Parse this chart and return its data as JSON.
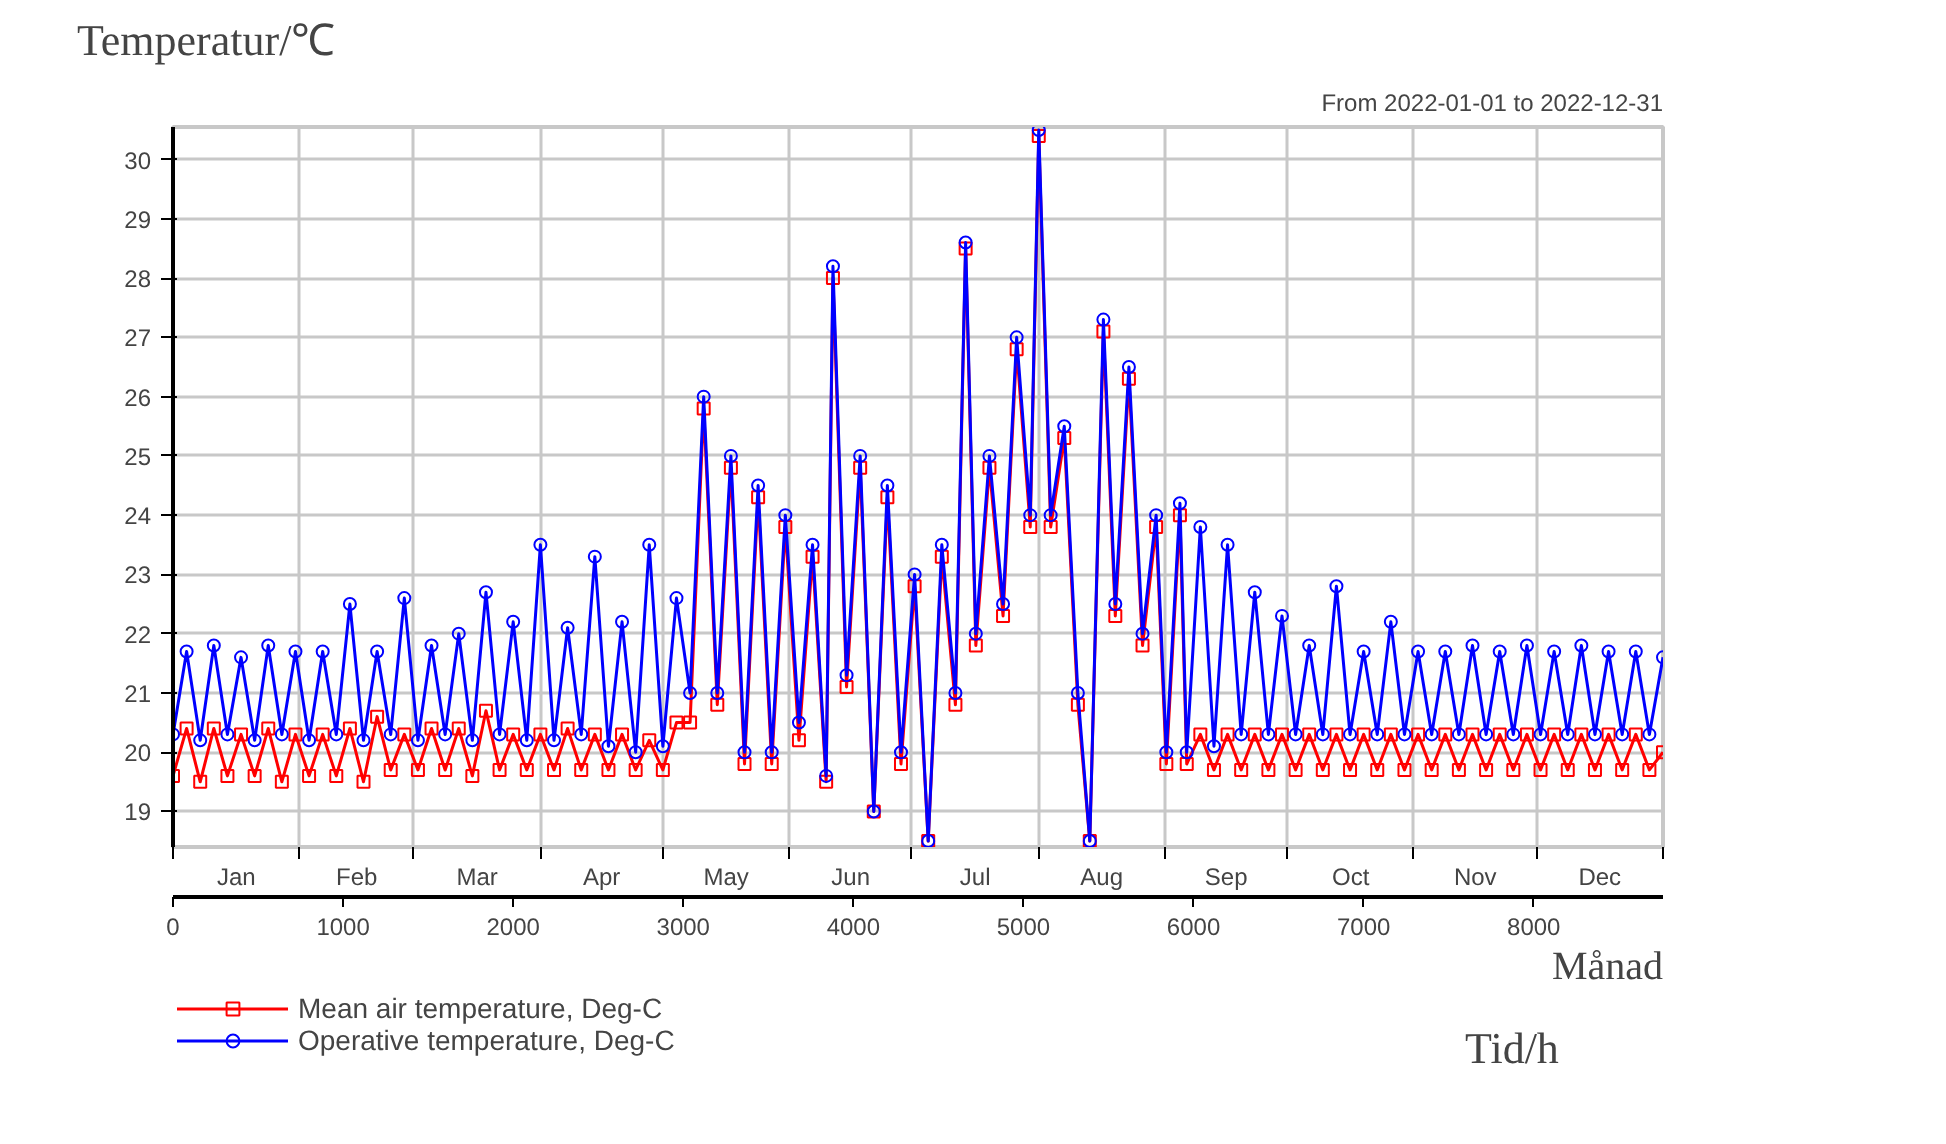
{
  "chart_data": {
    "type": "line",
    "subtitle": "From 2022-01-01 to 2022-12-31",
    "ylabel": "Temperatur/℃",
    "xlabel": "Tid/h",
    "x2label": "Månad",
    "x": [
      0,
      80,
      160,
      240,
      320,
      400,
      480,
      560,
      640,
      720,
      800,
      880,
      960,
      1040,
      1120,
      1200,
      1280,
      1360,
      1440,
      1520,
      1600,
      1680,
      1760,
      1840,
      1920,
      2000,
      2080,
      2160,
      2240,
      2320,
      2400,
      2480,
      2560,
      2640,
      2720,
      2800,
      2880,
      2960,
      3040,
      3120,
      3200,
      3280,
      3360,
      3440,
      3520,
      3600,
      3680,
      3760,
      3840,
      3880,
      3960,
      4040,
      4120,
      4200,
      4280,
      4360,
      4440,
      4520,
      4600,
      4660,
      4720,
      4800,
      4880,
      4960,
      5040,
      5090,
      5160,
      5240,
      5320,
      5390,
      5470,
      5540,
      5620,
      5700,
      5780,
      5840,
      5920,
      5960,
      6040,
      6120,
      6200,
      6280,
      6360,
      6440,
      6520,
      6600,
      6680,
      6760,
      6840,
      6920,
      7000,
      7080,
      7160,
      7240,
      7320,
      7400,
      7480,
      7560,
      7640,
      7720,
      7800,
      7880,
      7960,
      8040,
      8120,
      8200,
      8280,
      8360,
      8440,
      8520,
      8600,
      8680,
      8760
    ],
    "series": [
      {
        "name": "Mean air temperature, Deg-C",
        "color": "#ff0000",
        "marker": "square",
        "values": [
          19.6,
          20.4,
          19.5,
          20.4,
          19.6,
          20.3,
          19.6,
          20.4,
          19.5,
          20.3,
          19.6,
          20.3,
          19.6,
          20.4,
          19.5,
          20.6,
          19.7,
          20.3,
          19.7,
          20.4,
          19.7,
          20.4,
          19.6,
          20.7,
          19.7,
          20.3,
          19.7,
          20.3,
          19.7,
          20.4,
          19.7,
          20.3,
          19.7,
          20.3,
          19.7,
          20.2,
          19.7,
          20.5,
          20.5,
          25.8,
          20.8,
          24.8,
          19.8,
          24.3,
          19.8,
          23.8,
          20.2,
          23.3,
          19.5,
          28.0,
          21.1,
          24.8,
          19.0,
          24.3,
          19.8,
          22.8,
          18.5,
          23.3,
          20.8,
          28.5,
          21.8,
          24.8,
          22.3,
          26.8,
          23.8,
          30.4,
          23.8,
          25.3,
          20.8,
          18.5,
          27.1,
          22.3,
          26.3,
          21.8,
          23.8,
          19.8,
          24.0,
          19.8,
          20.3,
          19.7,
          20.3,
          19.7,
          20.3,
          19.7,
          20.3,
          19.7,
          20.3,
          19.7,
          20.3,
          19.7,
          20.3,
          19.7,
          20.3,
          19.7,
          20.3,
          19.7,
          20.3,
          19.7,
          20.3,
          19.7,
          20.3,
          19.7,
          20.3,
          19.7,
          20.3,
          19.7,
          20.3,
          19.7,
          20.3,
          19.7,
          20.3,
          19.7,
          20.0
        ]
      },
      {
        "name": "Operative temperature, Deg-C",
        "color": "#0000ff",
        "marker": "circle",
        "values": [
          20.3,
          21.7,
          20.2,
          21.8,
          20.3,
          21.6,
          20.2,
          21.8,
          20.3,
          21.7,
          20.2,
          21.7,
          20.3,
          22.5,
          20.2,
          21.7,
          20.3,
          22.6,
          20.2,
          21.8,
          20.3,
          22.0,
          20.2,
          22.7,
          20.3,
          22.2,
          20.2,
          23.5,
          20.2,
          22.1,
          20.3,
          23.3,
          20.1,
          22.2,
          20.0,
          23.5,
          20.1,
          22.6,
          21.0,
          26.0,
          21.0,
          25.0,
          20.0,
          24.5,
          20.0,
          24.0,
          20.5,
          23.5,
          19.6,
          28.2,
          21.3,
          25.0,
          19.0,
          24.5,
          20.0,
          23.0,
          18.5,
          23.5,
          21.0,
          28.6,
          22.0,
          25.0,
          22.5,
          27.0,
          24.0,
          30.5,
          24.0,
          25.5,
          21.0,
          18.5,
          27.3,
          22.5,
          26.5,
          22.0,
          24.0,
          20.0,
          24.2,
          20.0,
          23.8,
          20.1,
          23.5,
          20.3,
          22.7,
          20.3,
          22.3,
          20.3,
          21.8,
          20.3,
          22.8,
          20.3,
          21.7,
          20.3,
          22.2,
          20.3,
          21.7,
          20.3,
          21.7,
          20.3,
          21.8,
          20.3,
          21.7,
          20.3,
          21.8,
          20.3,
          21.7,
          20.3,
          21.8,
          20.3,
          21.7,
          20.3,
          21.7,
          20.3,
          21.6
        ]
      }
    ],
    "xlim": [
      0,
      8760
    ],
    "xticks": [
      0,
      1000,
      2000,
      3000,
      4000,
      5000,
      6000,
      7000,
      8000
    ],
    "x2lim": [
      "2022-01-01T00:00",
      "2023-01-01T00:00"
    ],
    "x2ticks": [
      {
        "value": "2022-01-01",
        "label": null
      },
      {
        "value": "2022-01-16T12:00",
        "label": "Jan"
      },
      {
        "value": "2022-02-01",
        "label": null
      },
      {
        "value": "2022-02-15",
        "label": "Feb"
      },
      {
        "value": "2022-03-01",
        "label": null
      },
      {
        "value": "2022-03-16T12:00",
        "label": "Mar"
      },
      {
        "value": "2022-04-01",
        "label": null
      },
      {
        "value": "2022-04-16",
        "label": "Apr"
      },
      {
        "value": "2022-05-01",
        "label": null
      },
      {
        "value": "2022-05-16T12:00",
        "label": "May"
      },
      {
        "value": "2022-06-01",
        "label": null
      },
      {
        "value": "2022-06-16",
        "label": "Jun"
      },
      {
        "value": "2022-07-01",
        "label": null
      },
      {
        "value": "2022-07-16T12:00",
        "label": "Jul"
      },
      {
        "value": "2022-08-01",
        "label": null
      },
      {
        "value": "2022-08-16T12:00",
        "label": "Aug"
      },
      {
        "value": "2022-09-01",
        "label": null
      },
      {
        "value": "2022-09-16",
        "label": "Sep"
      },
      {
        "value": "2022-10-01",
        "label": null
      },
      {
        "value": "2022-10-16T12:00",
        "label": "Oct"
      },
      {
        "value": "2022-11-01",
        "label": null
      },
      {
        "value": "2022-11-16",
        "label": "Nov"
      },
      {
        "value": "2022-12-01",
        "label": null
      },
      {
        "value": "2022-12-16T12:00",
        "label": "Dec"
      },
      {
        "value": "2023-01-01",
        "label": null
      }
    ],
    "ylim": [
      18.4,
      30.55
    ],
    "yticks": [
      19,
      20,
      21,
      22,
      23,
      24,
      25,
      26,
      27,
      28,
      29,
      30
    ],
    "grid": true,
    "legend": "bottom left"
  }
}
